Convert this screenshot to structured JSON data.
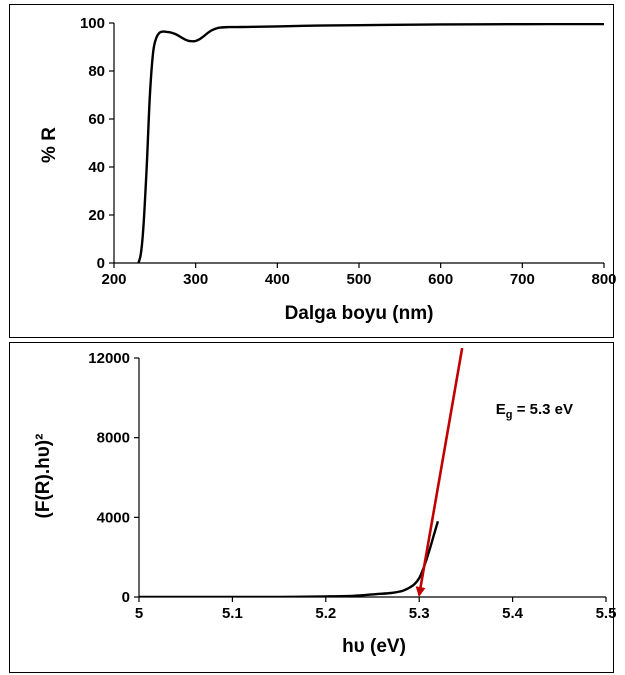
{
  "chart_data": [
    {
      "type": "line",
      "xlabel": "Dalga boyu (nm)",
      "ylabel": "% R",
      "xlim": [
        200,
        800
      ],
      "ylim": [
        0,
        100
      ],
      "xticks": [
        "200",
        "300",
        "400",
        "500",
        "600",
        "700",
        "800"
      ],
      "yticks": [
        "0",
        "20",
        "40",
        "60",
        "80",
        "100"
      ],
      "grid": false,
      "series": [
        {
          "color": "#000000",
          "x": [
            230,
            233,
            236,
            240,
            244,
            248,
            252,
            256,
            260,
            265,
            270,
            275,
            280,
            285,
            290,
            295,
            300,
            305,
            310,
            315,
            320,
            325,
            330,
            340,
            350,
            370,
            400,
            450,
            500,
            600,
            700,
            800
          ],
          "y": [
            0,
            4,
            15,
            40,
            70,
            88,
            94,
            96,
            96.4,
            96.3,
            96,
            95.4,
            94.5,
            93.5,
            92.7,
            92.4,
            92.5,
            93.3,
            94.5,
            95.9,
            97,
            97.7,
            98.1,
            98.3,
            98.3,
            98.4,
            98.6,
            98.9,
            99.1,
            99.4,
            99.5,
            99.6
          ]
        }
      ]
    },
    {
      "type": "line",
      "xlabel": "hυ (eV)",
      "ylabel": "(F(R).hυ)²",
      "xlim": [
        5,
        5.5
      ],
      "ylim": [
        0,
        12000
      ],
      "xticks": [
        "5",
        "5.1",
        "5.2",
        "5.3",
        "5.4",
        "5.5"
      ],
      "yticks": [
        "0",
        "4000",
        "8000",
        "12000"
      ],
      "grid": false,
      "annotations": [
        {
          "text": "Eg = 5.3 eV",
          "main": "E",
          "sub": "g",
          "rest": " = 5.3 eV",
          "x": 5.382,
          "y": 9200
        }
      ],
      "series": [
        {
          "color": "#000000",
          "x": [
            5.0,
            5.05,
            5.1,
            5.15,
            5.2,
            5.23,
            5.25,
            5.27,
            5.28,
            5.285,
            5.29,
            5.295,
            5.3,
            5.305,
            5.31,
            5.315,
            5.32
          ],
          "y": [
            0,
            0,
            0,
            5,
            30,
            60,
            130,
            200,
            280,
            360,
            480,
            650,
            950,
            1500,
            2200,
            3000,
            3800
          ]
        }
      ],
      "tangent": {
        "color": "#c00000",
        "x": [
          5.346,
          5.3
        ],
        "y": [
          12500,
          0
        ]
      }
    }
  ]
}
